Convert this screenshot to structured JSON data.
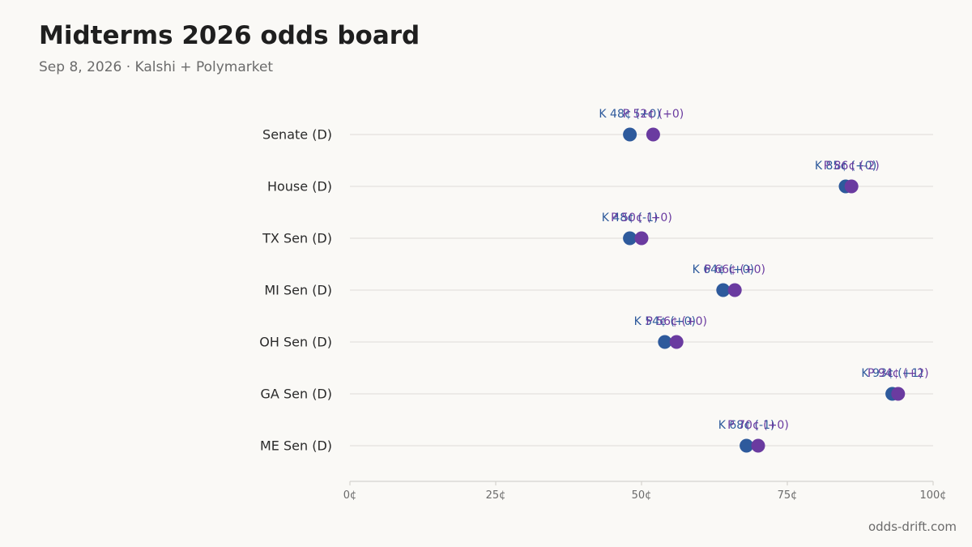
{
  "header": {
    "title": "Midterms 2026 odds board",
    "subtitle": "Sep 8, 2026 · Kalshi + Polymarket"
  },
  "footer": {
    "source": "odds-drift.com"
  },
  "colors": {
    "kalshi": "#2e5a9c",
    "polymarket": "#6a3ba0",
    "gridline": "#e3e2de",
    "axis": "#d4d3cf"
  },
  "chart_data": {
    "type": "scatter",
    "title": "Midterms 2026 odds board",
    "subtitle": "Sep 8, 2026 · Kalshi + Polymarket",
    "xlim": [
      0,
      100
    ],
    "x_unit": "¢",
    "x_ticks": [
      0,
      25,
      50,
      75,
      100
    ],
    "x_tick_labels": [
      "0¢",
      "25¢",
      "50¢",
      "75¢",
      "100¢"
    ],
    "grid": "horizontal row lines",
    "categories": [
      "Senate (D)",
      "House (D)",
      "TX Sen (D)",
      "MI Sen (D)",
      "OH Sen (D)",
      "GA Sen (D)",
      "ME Sen (D)"
    ],
    "series": [
      {
        "values": [
          48,
          85,
          48,
          64,
          54,
          93,
          68
        ],
        "labels": [
          "K 48¢ (+0)",
          "K 85¢ (+0)",
          "K 48¢ (-1)",
          "K 64¢ (+0)",
          "K 54¢ (+0)",
          "K 93¢ (+1)",
          "K 68¢ (-1)"
        ]
      },
      {
        "values": [
          52,
          86,
          50,
          66,
          56,
          94,
          70
        ],
        "labels": [
          "P 52¢ (+0)",
          "P 86¢ (-2)",
          "P 50¢ (+0)",
          "P 66¢ (+0)",
          "P 56¢ (+0)",
          "P 94¢ (+2)",
          "P 70¢ (+0)"
        ]
      }
    ]
  }
}
